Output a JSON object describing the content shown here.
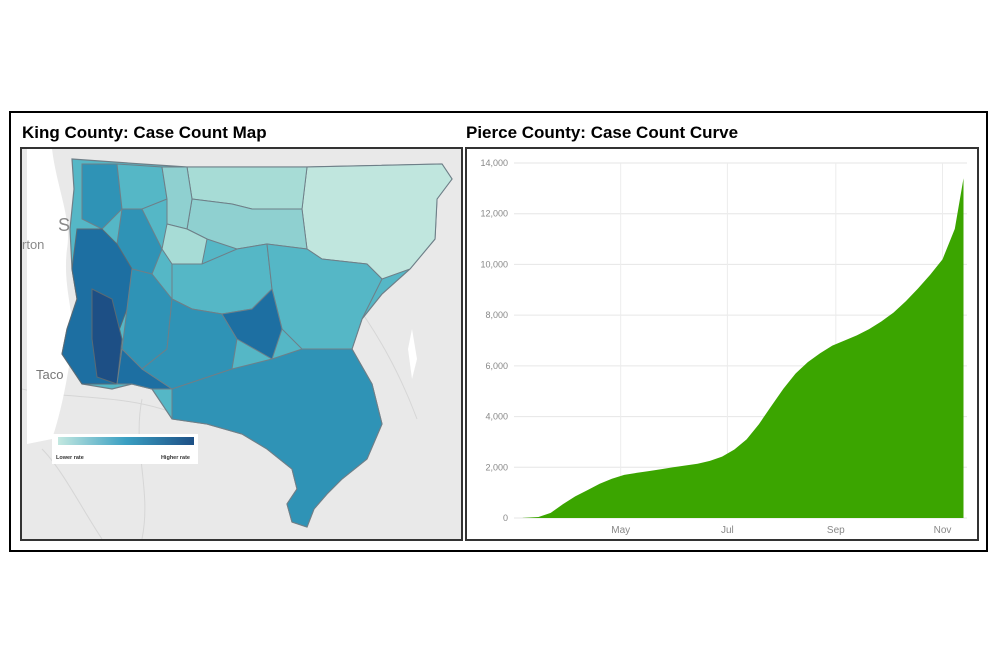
{
  "panels": {
    "map_title": "King County: Case Count Map",
    "chart_title": "Pierce County: Case Count Curve"
  },
  "map": {
    "place_labels": [
      "S",
      "rton",
      "Taco"
    ],
    "legend": {
      "low_label": "Lower rate",
      "high_label": "Higher rate",
      "low_color": "#c3e8e0",
      "high_color": "#1d4f85"
    },
    "colors": {
      "background": "#e9e9e9",
      "water": "#ffffff",
      "lightest": "#c0e6de",
      "light": "#8fd0d0",
      "mid": "#55b7c6",
      "midDark": "#2f93b6",
      "dark": "#1d6fa2",
      "darkest": "#1d4f85"
    }
  },
  "chart_data": {
    "type": "area",
    "title": "",
    "xlabel": "",
    "ylabel": "",
    "color": "#3ba500",
    "ylim": [
      0,
      14000
    ],
    "yticks": [
      0,
      2000,
      4000,
      6000,
      8000,
      10000,
      12000,
      14000
    ],
    "ytick_labels": [
      "0",
      "2,000",
      "4,000",
      "6,000",
      "8,000",
      "10,000",
      "12,000",
      "14,000"
    ],
    "xticks": [
      {
        "label": "May",
        "date": "2020-05-01"
      },
      {
        "label": "Jul",
        "date": "2020-07-01"
      },
      {
        "label": "Sep",
        "date": "2020-09-01"
      },
      {
        "label": "Nov",
        "date": "2020-11-01"
      }
    ],
    "xlim": [
      "2020-03-01",
      "2020-11-15"
    ],
    "series": [
      {
        "x": [
          "2020-03-06",
          "2020-03-15",
          "2020-03-22",
          "2020-03-29",
          "2020-04-05",
          "2020-04-12",
          "2020-04-19",
          "2020-04-26",
          "2020-05-03",
          "2020-05-10",
          "2020-05-17",
          "2020-05-24",
          "2020-05-31",
          "2020-06-07",
          "2020-06-14",
          "2020-06-21",
          "2020-06-28",
          "2020-07-05",
          "2020-07-12",
          "2020-07-19",
          "2020-07-26",
          "2020-08-02",
          "2020-08-09",
          "2020-08-16",
          "2020-08-23",
          "2020-08-30",
          "2020-09-06",
          "2020-09-13",
          "2020-09-20",
          "2020-09-27",
          "2020-10-04",
          "2020-10-11",
          "2020-10-18",
          "2020-10-25",
          "2020-11-01",
          "2020-11-08",
          "2020-11-13"
        ],
        "values": [
          5,
          40,
          200,
          550,
          850,
          1100,
          1350,
          1550,
          1700,
          1780,
          1850,
          1920,
          2000,
          2070,
          2140,
          2250,
          2420,
          2700,
          3100,
          3700,
          4400,
          5100,
          5700,
          6150,
          6500,
          6800,
          7000,
          7200,
          7450,
          7750,
          8100,
          8550,
          9050,
          9600,
          10200,
          11400,
          13400
        ]
      }
    ]
  }
}
